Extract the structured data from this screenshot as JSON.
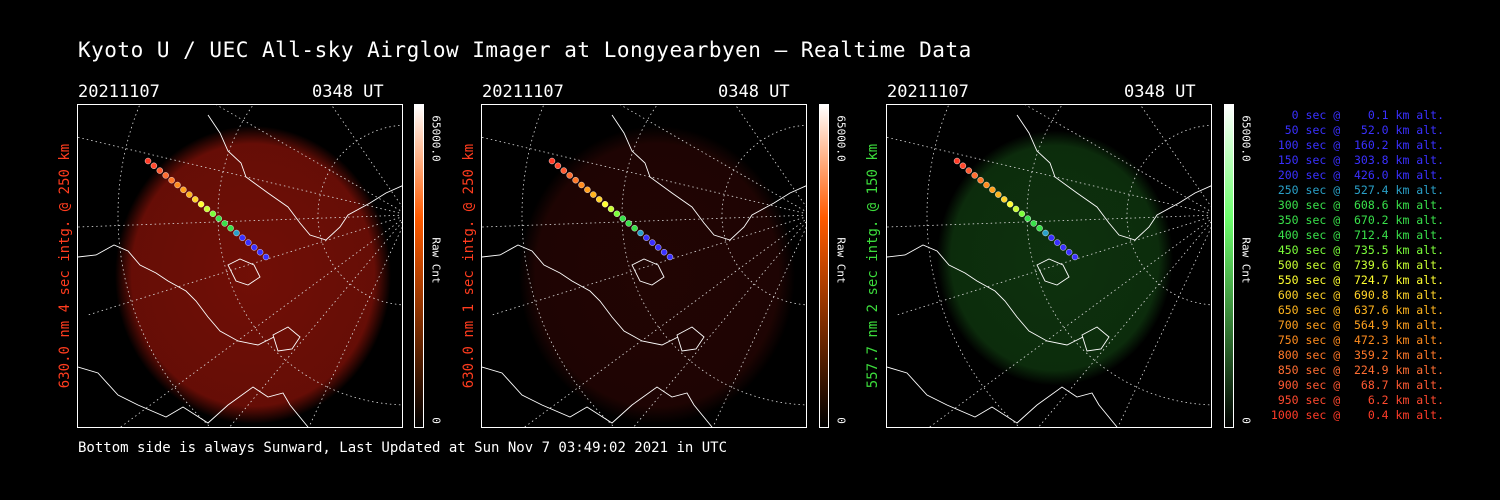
{
  "title": "Kyoto U / UEC All-sky Airglow Imager at Longyearbyen — Realtime Data",
  "panels": [
    {
      "date": "20211107",
      "time": "0348 UT",
      "side_label": "630.0 nm 4 sec intg. @ 250 km",
      "label_color": "#ff3c1e",
      "cbar_max": "65000.0",
      "cbar_min": "0",
      "cbar_unit": "Raw Cnt",
      "glow": "#8a1208",
      "glow_opacity": 0.82,
      "cbar_color": "#ff5a00"
    },
    {
      "date": "20211107",
      "time": "0348 UT",
      "side_label": "630.0 nm 1 sec intg. @ 250 km",
      "label_color": "#ff3c1e",
      "cbar_max": "65000.0",
      "cbar_min": "0",
      "cbar_unit": "Raw Cnt",
      "glow": "#2a0604",
      "glow_opacity": 0.8,
      "cbar_color": "#ff5a00"
    },
    {
      "date": "20211107",
      "time": "0348 UT",
      "side_label": "557.7 nm 2 sec intg. @ 150 km",
      "label_color": "#3cdc3c",
      "cbar_max": "65000.0",
      "cbar_min": "0",
      "cbar_unit": "Raw Cnt",
      "glow": "#103a10",
      "glow_opacity": 0.85,
      "cbar_color": "#6cff6c"
    }
  ],
  "legend": [
    {
      "text": "0 sec @    0.1 km alt.",
      "color": "#3a30ff"
    },
    {
      "text": "50 sec @   52.0 km alt.",
      "color": "#3a30ff"
    },
    {
      "text": "100 sec @  160.2 km alt.",
      "color": "#3a30ff"
    },
    {
      "text": "150 sec @  303.8 km alt.",
      "color": "#3a30ff"
    },
    {
      "text": "200 sec @  426.0 km alt.",
      "color": "#3a30ff"
    },
    {
      "text": "250 sec @  527.4 km alt.",
      "color": "#2aa0c8"
    },
    {
      "text": "300 sec @  608.6 km alt.",
      "color": "#39e04a"
    },
    {
      "text": "350 sec @  670.2 km alt.",
      "color": "#39e04a"
    },
    {
      "text": "400 sec @  712.4 km alt.",
      "color": "#39e04a"
    },
    {
      "text": "450 sec @  735.5 km alt.",
      "color": "#7cff3a"
    },
    {
      "text": "500 sec @  739.6 km alt.",
      "color": "#c8ff32"
    },
    {
      "text": "550 sec @  724.7 km alt.",
      "color": "#ffff30"
    },
    {
      "text": "600 sec @  690.8 km alt.",
      "color": "#ffd228"
    },
    {
      "text": "650 sec @  637.6 km alt.",
      "color": "#ffb41e"
    },
    {
      "text": "700 sec @  564.9 km alt.",
      "color": "#ffa01e"
    },
    {
      "text": "750 sec @  472.3 km alt.",
      "color": "#ff8c1e"
    },
    {
      "text": "800 sec @  359.2 km alt.",
      "color": "#ff7828"
    },
    {
      "text": "850 sec @  224.9 km alt.",
      "color": "#ff6e32"
    },
    {
      "text": "900 sec @   68.7 km alt.",
      "color": "#ff5a32"
    },
    {
      "text": "950 sec @    6.2 km alt.",
      "color": "#ff4a2e"
    },
    {
      "text": "1000 sec @    0.4 km alt.",
      "color": "#ff3c28"
    }
  ],
  "footer": "Bottom side is always Sunward, Last Updated at Sun Nov  7 03:49:02 2021 in UTC"
}
